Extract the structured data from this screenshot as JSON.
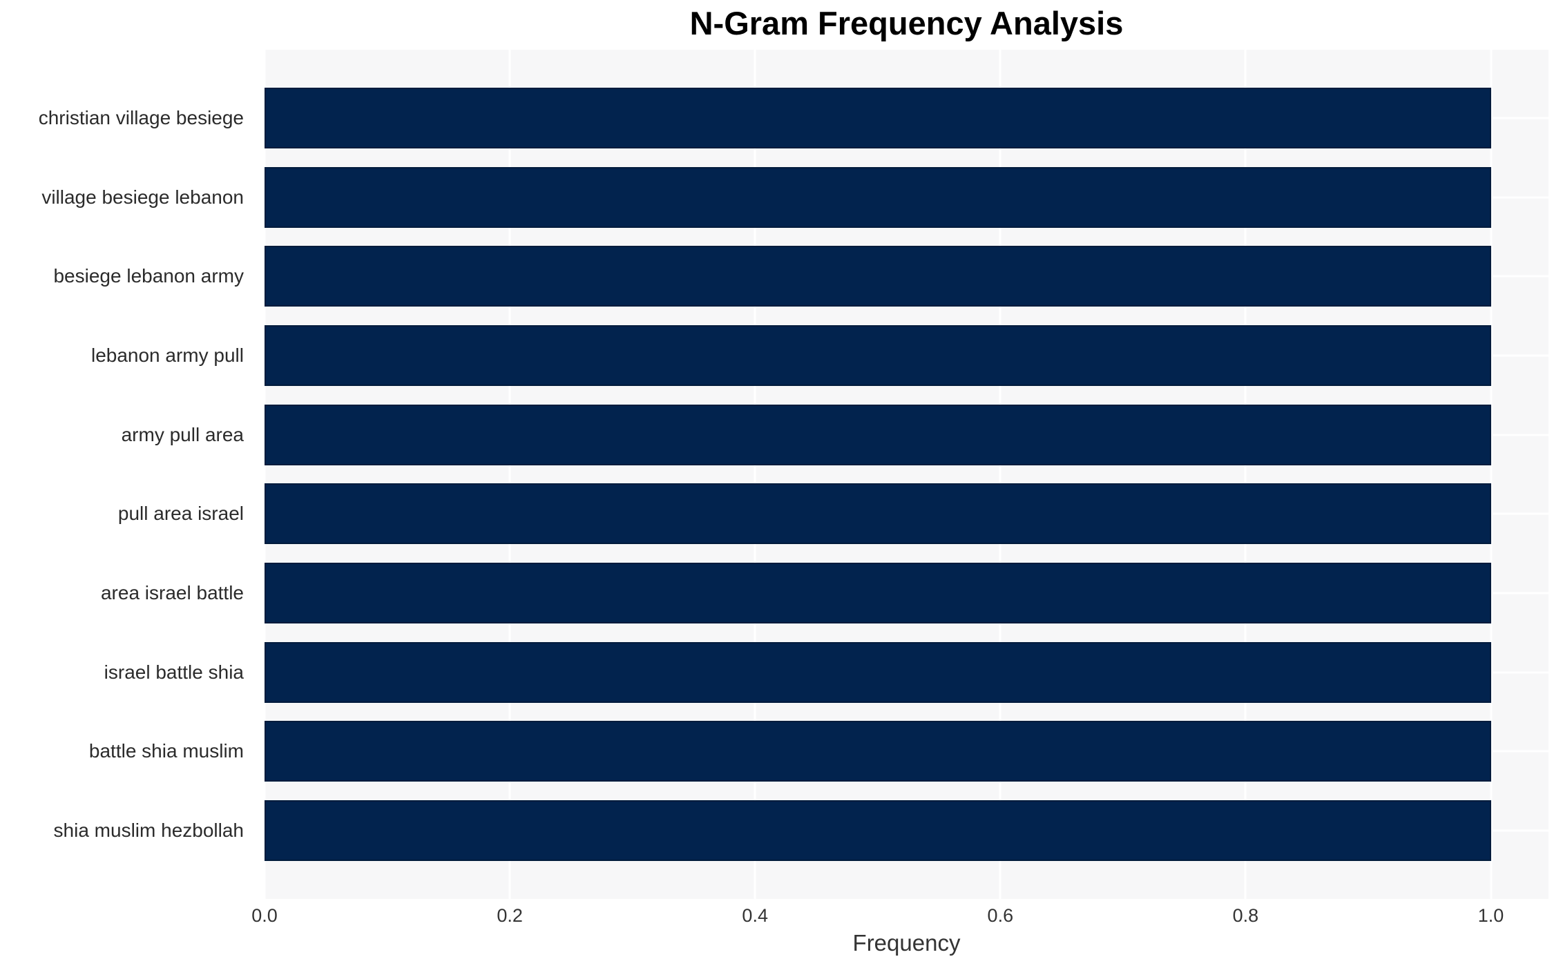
{
  "chart_data": {
    "type": "bar",
    "orientation": "horizontal",
    "title": "N-Gram Frequency Analysis",
    "xlabel": "Frequency",
    "ylabel": "",
    "categories": [
      "christian village besiege",
      "village besiege lebanon",
      "besiege lebanon army",
      "lebanon army pull",
      "army pull area",
      "pull area israel",
      "area israel battle",
      "israel battle shia",
      "battle shia muslim",
      "shia muslim hezbollah"
    ],
    "values": [
      1.0,
      1.0,
      1.0,
      1.0,
      1.0,
      1.0,
      1.0,
      1.0,
      1.0,
      1.0
    ],
    "xticks": [
      0.0,
      0.2,
      0.4,
      0.6,
      0.8,
      1.0
    ],
    "xtick_labels": [
      "0.0",
      "0.2",
      "0.4",
      "0.6",
      "0.8",
      "1.0"
    ],
    "xlim": [
      0,
      1.047
    ],
    "grid": true,
    "legend_position": "none",
    "colors": {
      "bar": "#02234e",
      "bar_edge": "rgba(0,0,0,0.22)",
      "plot_bg": "#f7f7f8",
      "grid": "#ffffff",
      "title_text": "#000000",
      "label_text": "#2b2b2b",
      "tick_text": "#333333"
    }
  }
}
